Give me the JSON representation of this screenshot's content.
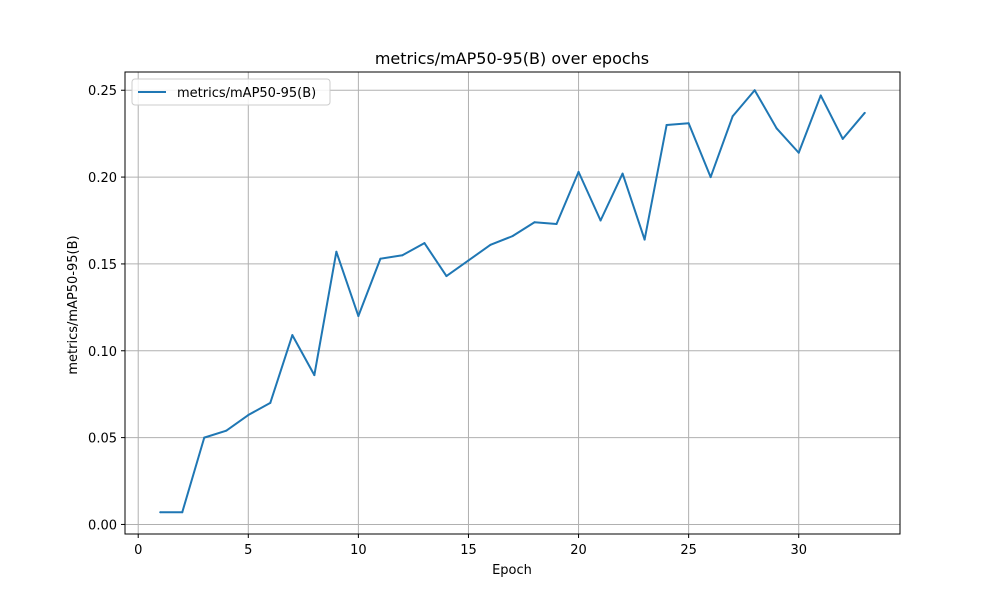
{
  "chart_data": {
    "type": "line",
    "title": "metrics/mAP50-95(B) over epochs",
    "xlabel": "Epoch",
    "ylabel": "metrics/mAP50-95(B)",
    "xlim": [
      -0.6,
      34.6
    ],
    "ylim": [
      -0.0055,
      0.2605
    ],
    "xticks": [
      0,
      5,
      10,
      15,
      20,
      25,
      30
    ],
    "xtick_labels": [
      "0",
      "5",
      "10",
      "15",
      "20",
      "25",
      "30"
    ],
    "yticks": [
      0.0,
      0.05,
      0.1,
      0.15,
      0.2,
      0.25
    ],
    "ytick_labels": [
      "0.00",
      "0.05",
      "0.10",
      "0.15",
      "0.20",
      "0.25"
    ],
    "grid": true,
    "legend_position": "top-left",
    "series": [
      {
        "name": "metrics/mAP50-95(B)",
        "color": "#1f77b4",
        "x": [
          1,
          2,
          3,
          4,
          5,
          6,
          7,
          8,
          9,
          10,
          11,
          12,
          13,
          14,
          15,
          16,
          17,
          18,
          19,
          20,
          21,
          22,
          23,
          24,
          25,
          26,
          27,
          28,
          29,
          30,
          31,
          32,
          33
        ],
        "y": [
          0.007,
          0.007,
          0.05,
          0.054,
          0.063,
          0.07,
          0.109,
          0.086,
          0.157,
          0.12,
          0.153,
          0.155,
          0.162,
          0.143,
          0.152,
          0.161,
          0.166,
          0.174,
          0.173,
          0.203,
          0.175,
          0.202,
          0.164,
          0.23,
          0.231,
          0.2,
          0.235,
          0.25,
          0.228,
          0.214,
          0.247,
          0.222,
          0.237
        ]
      }
    ]
  }
}
